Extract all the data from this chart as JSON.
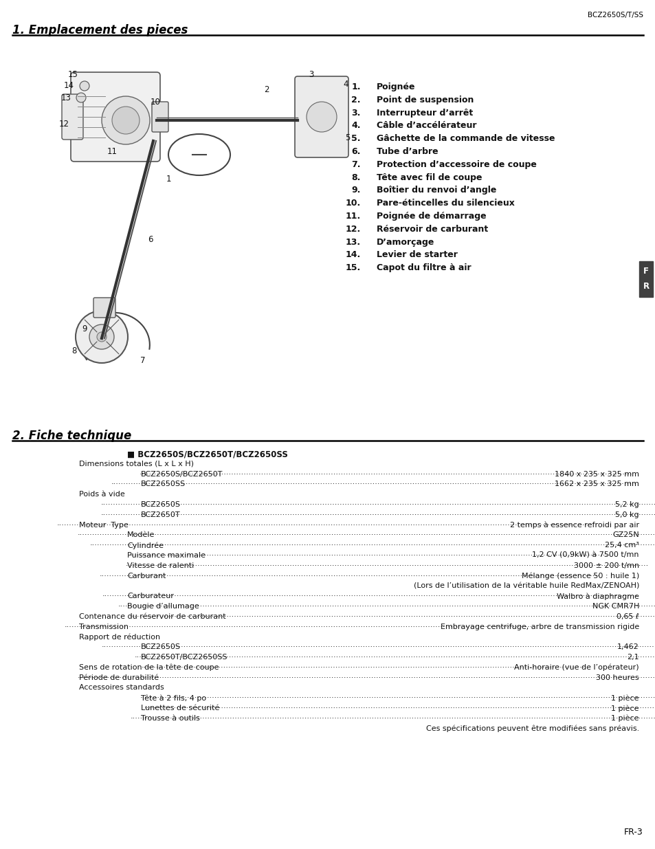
{
  "page_header_right": "BCZ2650S/T/SS",
  "section1_title": "1. Emplacement des pieces",
  "section2_title": "2. Fiche technique",
  "parts_list": [
    [
      "1.",
      "Poignée"
    ],
    [
      "2.",
      "Point de suspension"
    ],
    [
      "3.",
      "Interrupteur d’arrêt"
    ],
    [
      "4.",
      "Câble d’accélérateur"
    ],
    [
      "5.",
      "Gâchette de la commande de vitesse"
    ],
    [
      "6.",
      "Tube d’arbre"
    ],
    [
      "7.",
      "Protection d’accessoire de coupe"
    ],
    [
      "8.",
      "Tête avec fil de coupe"
    ],
    [
      "9.",
      "Boîtier du renvoi d’angle"
    ],
    [
      "10.",
      "Pare-étincelles du silencieux"
    ],
    [
      "11.",
      "Poignée de démarrage"
    ],
    [
      "12.",
      "Réservoir de carburant"
    ],
    [
      "13.",
      "D’amorçage"
    ],
    [
      "14.",
      "Levier de starter"
    ],
    [
      "15.",
      "Capot du filtre à air"
    ]
  ],
  "spec_header": "■ BCZ2650S/BCZ2650T/BCZ2650SS",
  "spec_lines": [
    {
      "label": "Dimensions totales (L x L x H)",
      "indent": 0,
      "dots": false,
      "value": ""
    },
    {
      "label": "BCZ2650S/BCZ2650T",
      "indent": 2,
      "dots": true,
      "value": "1840 x 235 x 325 mm"
    },
    {
      "label": "BCZ2650SS",
      "indent": 2,
      "dots": true,
      "value": "1662 x 235 x 325 mm"
    },
    {
      "label": "Poids à vide",
      "indent": 0,
      "dots": false,
      "value": ""
    },
    {
      "label": "BCZ2650S",
      "indent": 2,
      "dots": true,
      "value": "5,2 kg"
    },
    {
      "label": "BCZ2650T",
      "indent": 2,
      "dots": true,
      "value": "5,0 kg"
    },
    {
      "label": "Moteur  Type",
      "indent": 0,
      "dots": true,
      "value": "2 temps à essence refroidi par air"
    },
    {
      "label": "Modèle",
      "indent": 1,
      "dots": true,
      "value": "GZ25N"
    },
    {
      "label": "Cylindrée",
      "indent": 1,
      "dots": true,
      "value": "25,4 cm³"
    },
    {
      "label": "Puissance maximale",
      "indent": 1,
      "dots": true,
      "value": "1,2 CV (0,9kW) à 7500 t/mn"
    },
    {
      "label": "Vitesse de ralenti",
      "indent": 1,
      "dots": true,
      "value": "3000 ± 200 t/mn"
    },
    {
      "label": "Carburant",
      "indent": 1,
      "dots": true,
      "value": "Mélange (essence 50 : huile 1)"
    },
    {
      "label": "",
      "indent": 0,
      "dots": false,
      "value": "(Lors de l’utilisation de la véritable huile RedMax/ZENOAH)",
      "right_only": true
    },
    {
      "label": "Carburateur",
      "indent": 1,
      "dots": true,
      "value": "Walbro à diaphragme"
    },
    {
      "label": "Bougie d’allumage",
      "indent": 1,
      "dots": true,
      "value": "NGK CMR7H"
    },
    {
      "label": "Contenance du réservoir de carburant",
      "indent": 0,
      "dots": true,
      "value": "0,65 ℓ"
    },
    {
      "label": "Transmission",
      "indent": 0,
      "dots": true,
      "value": "Embrayage centrifuge, arbre de transmission rigide"
    },
    {
      "label": "Rapport de réduction",
      "indent": 0,
      "dots": false,
      "value": ""
    },
    {
      "label": "BCZ2650S",
      "indent": 2,
      "dots": true,
      "value": "1,462"
    },
    {
      "label": "BCZ2650T/BCZ2650SS",
      "indent": 2,
      "dots": true,
      "value": "2,1"
    },
    {
      "label": "Sens de rotation de la tête de coupe",
      "indent": 0,
      "dots": true,
      "value": "Anti-horaire (vue de l’opérateur)"
    },
    {
      "label": "Période de durabilité",
      "indent": 0,
      "dots": true,
      "value": "300 heures"
    },
    {
      "label": "Accessoires standards",
      "indent": 0,
      "dots": false,
      "value": ""
    },
    {
      "label": "Tête à 2 fils, 4 po",
      "indent": 2,
      "dots": true,
      "value": "1 pièce"
    },
    {
      "label": "Lunettes de sécurité",
      "indent": 2,
      "dots": true,
      "value": "1 pièce"
    },
    {
      "label": "Trousse à outils",
      "indent": 2,
      "dots": true,
      "value": "1 pièce"
    },
    {
      "label": "",
      "indent": 0,
      "dots": false,
      "value": "Ces spécifications peuvent être modifiées sans préavis.",
      "right_only": true
    }
  ],
  "footer": "FR-3",
  "bg_color": "#ffffff",
  "text_color": "#000000"
}
